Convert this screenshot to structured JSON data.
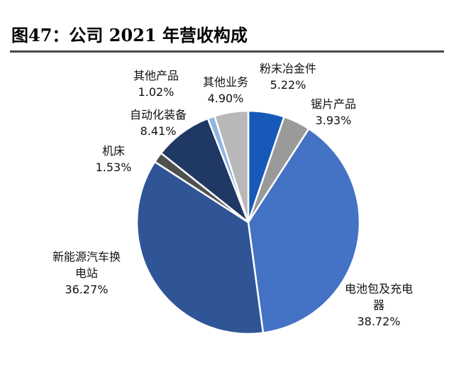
{
  "figure": {
    "title": "图47：公司 2021 年营收构成"
  },
  "chart_data": {
    "type": "pie",
    "title": "",
    "slices": [
      {
        "name": "粉末冶金件",
        "value": 5.22,
        "value_label": "5.22%",
        "color": "#1659b8",
        "label_lines": [
          "粉末冶金件"
        ]
      },
      {
        "name": "锯片产品",
        "value": 3.93,
        "value_label": "3.93%",
        "color": "#9a9a9a",
        "label_lines": [
          "锯片产品"
        ]
      },
      {
        "name": "电池包及充电器",
        "value": 38.72,
        "value_label": "38.72%",
        "color": "#4472c4",
        "label_lines": [
          "电池包及充电",
          "器"
        ]
      },
      {
        "name": "新能源汽车换电站",
        "value": 36.27,
        "value_label": "36.27%",
        "color": "#2f5597",
        "label_lines": [
          "新能源汽车换",
          "电站"
        ]
      },
      {
        "name": "机床",
        "value": 1.53,
        "value_label": "1.53%",
        "color": "#505050",
        "label_lines": [
          "机床"
        ]
      },
      {
        "name": "自动化装备",
        "value": 8.41,
        "value_label": "8.41%",
        "color": "#203864",
        "label_lines": [
          "自动化装备"
        ]
      },
      {
        "name": "其他产品",
        "value": 1.02,
        "value_label": "1.02%",
        "color": "#8fb4e3",
        "label_lines": [
          "其他产品"
        ]
      },
      {
        "name": "其他业务",
        "value": 4.9,
        "value_label": "4.90%",
        "color": "#b8b8b8",
        "label_lines": [
          "其他业务"
        ]
      }
    ]
  }
}
